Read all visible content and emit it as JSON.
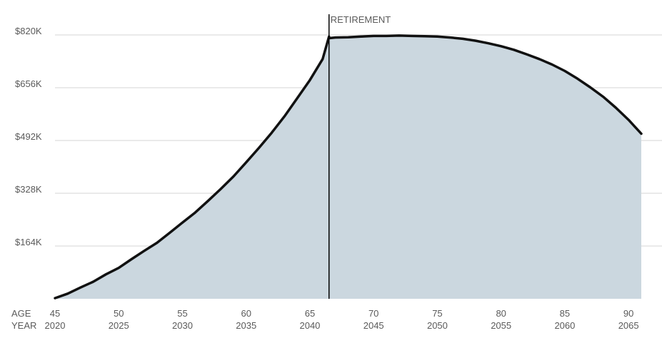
{
  "chart_data": {
    "type": "area",
    "title": "",
    "xlabel": "",
    "ylabel": "",
    "x_row_labels": [
      "AGE",
      "YEAR"
    ],
    "age_ticks": [
      "45",
      "50",
      "55",
      "60",
      "65",
      "70",
      "75",
      "80",
      "85",
      "90"
    ],
    "year_ticks": [
      "2020",
      "2025",
      "2030",
      "2035",
      "2040",
      "2045",
      "2050",
      "2055",
      "2060",
      "2065"
    ],
    "y_ticks": [
      "$164K",
      "$328K",
      "$492K",
      "$656K",
      "$820K"
    ],
    "y_tick_values": [
      164,
      328,
      492,
      656,
      820
    ],
    "ylim": [
      0,
      820
    ],
    "xlim": [
      45,
      91
    ],
    "grid": true,
    "annotation": {
      "label": "RETIREMENT",
      "age": 66.5
    },
    "series": [
      {
        "age": [
          45,
          46,
          47,
          48,
          49,
          50,
          51,
          52,
          53,
          54,
          55,
          56,
          57,
          58,
          59,
          60,
          61,
          62,
          63,
          64,
          65,
          66,
          66.5,
          66.51,
          67,
          68,
          69,
          70,
          71,
          72,
          73,
          74,
          75,
          76,
          77,
          78,
          79,
          80,
          81,
          82,
          83,
          84,
          85,
          86,
          87,
          88,
          89,
          90,
          91
        ],
        "value": [
          2,
          16,
          35,
          53,
          76,
          96,
          123,
          149,
          174,
          205,
          237,
          268,
          304,
          341,
          380,
          424,
          469,
          516,
          567,
          623,
          680,
          745,
          815,
          810,
          812,
          813,
          815,
          817,
          817,
          818,
          817,
          816,
          815,
          812,
          808,
          802,
          794,
          785,
          774,
          760,
          745,
          728,
          708,
          684,
          657,
          628,
          594,
          556,
          513
        ]
      }
    ],
    "colors": {
      "area_fill": "#cbd7df",
      "line": "#111111",
      "grid": "#d4d4d4",
      "marker": "#000000",
      "text": "#5a5a5a"
    }
  }
}
